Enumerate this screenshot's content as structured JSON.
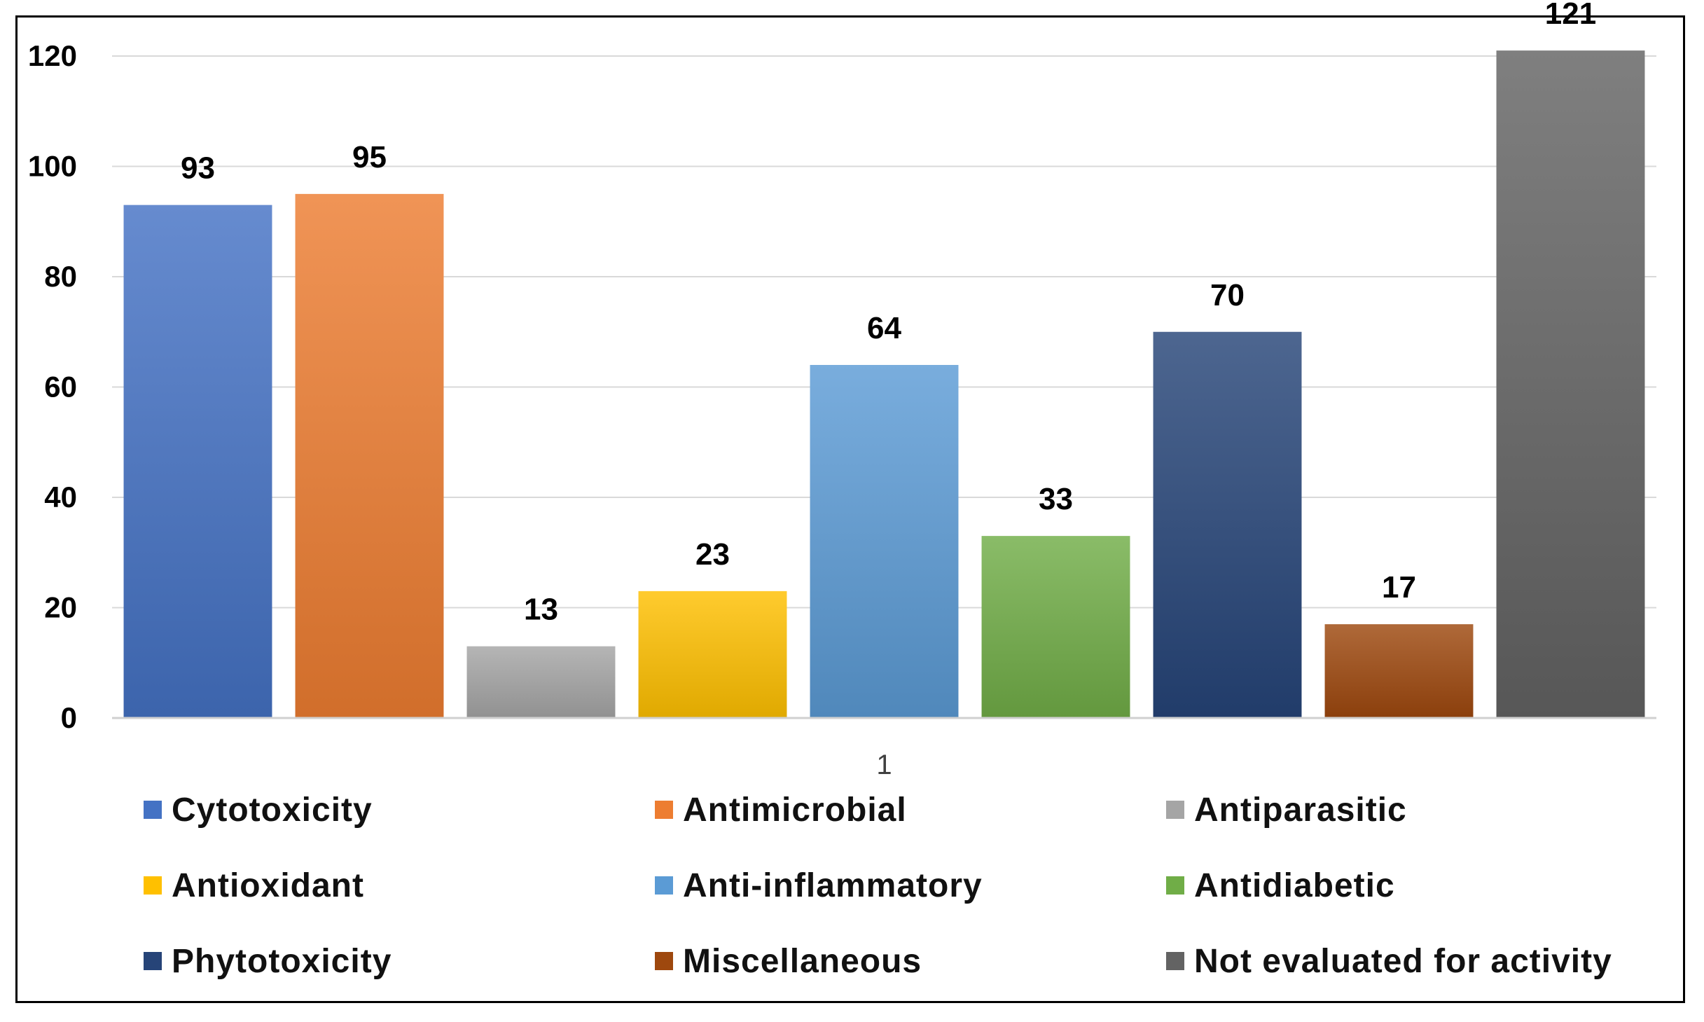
{
  "chart_data": {
    "type": "bar",
    "title": "",
    "xlabel": "",
    "ylabel": "",
    "categories": [
      "1"
    ],
    "ylim": [
      0,
      120
    ],
    "yticks": [
      0,
      20,
      40,
      60,
      80,
      100,
      120
    ],
    "grid": true,
    "legend_position": "bottom",
    "series": [
      {
        "name": "Cytotoxicity",
        "values": [
          93
        ],
        "color": "#4472C4"
      },
      {
        "name": "Antimicrobial",
        "values": [
          95
        ],
        "color": "#ED7D31"
      },
      {
        "name": "Antiparasitic",
        "values": [
          13
        ],
        "color": "#A5A5A5"
      },
      {
        "name": "Antioxidant",
        "values": [
          23
        ],
        "color": "#FFC000"
      },
      {
        "name": "Anti-inflammatory",
        "values": [
          64
        ],
        "color": "#5B9BD5"
      },
      {
        "name": "Antidiabetic",
        "values": [
          33
        ],
        "color": "#70AD47"
      },
      {
        "name": "Phytotoxicity",
        "values": [
          70
        ],
        "color": "#264478"
      },
      {
        "name": "Miscellaneous",
        "values": [
          17
        ],
        "color": "#9E480E"
      },
      {
        "name": "Not evaluated for  activity",
        "values": [
          121
        ],
        "color": "#636363"
      }
    ]
  }
}
